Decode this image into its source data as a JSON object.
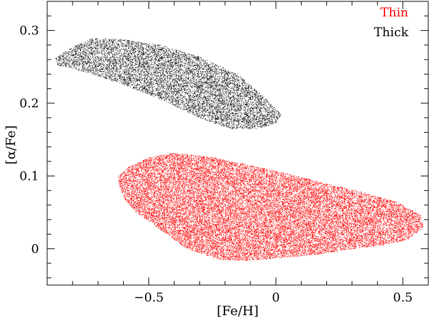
{
  "chart_data": {
    "type": "scatter",
    "title": "",
    "xlabel": "[Fe/H]",
    "ylabel": "[α/Fe]",
    "xlim": [
      -0.9,
      0.6
    ],
    "ylim": [
      -0.05,
      0.34
    ],
    "x_ticks": [
      -0.5,
      0,
      0.5
    ],
    "x_tick_labels": [
      "−0.5",
      "0",
      "0.5"
    ],
    "y_ticks": [
      0,
      0.1,
      0.2,
      0.3
    ],
    "y_tick_labels": [
      "0",
      "0.1",
      "0.2",
      "0.3"
    ],
    "grid": false,
    "legend_position": "top-right",
    "series": [
      {
        "name": "Thin",
        "color": "#ff0000",
        "marker": "dot",
        "n_points": 26000,
        "region_outline": [
          [
            -0.62,
            0.1
          ],
          [
            -0.58,
            0.113
          ],
          [
            -0.5,
            0.126
          ],
          [
            -0.4,
            0.132
          ],
          [
            -0.25,
            0.126
          ],
          [
            -0.1,
            0.115
          ],
          [
            0.05,
            0.103
          ],
          [
            0.2,
            0.09
          ],
          [
            0.35,
            0.077
          ],
          [
            0.48,
            0.064
          ],
          [
            0.57,
            0.046
          ],
          [
            0.58,
            0.03
          ],
          [
            0.52,
            0.013
          ],
          [
            0.42,
            0.005
          ],
          [
            0.3,
            0.0
          ],
          [
            0.15,
            -0.008
          ],
          [
            0.0,
            -0.013
          ],
          [
            -0.12,
            -0.016
          ],
          [
            -0.22,
            -0.015
          ],
          [
            -0.35,
            0.0
          ],
          [
            -0.45,
            0.025
          ],
          [
            -0.55,
            0.05
          ],
          [
            -0.6,
            0.07
          ],
          [
            -0.62,
            0.09
          ]
        ]
      },
      {
        "name": "Thick",
        "color": "#000000",
        "marker": "dot",
        "n_points": 9000,
        "region_outline": [
          [
            -0.87,
            0.262
          ],
          [
            -0.8,
            0.278
          ],
          [
            -0.72,
            0.29
          ],
          [
            -0.6,
            0.288
          ],
          [
            -0.45,
            0.28
          ],
          [
            -0.3,
            0.264
          ],
          [
            -0.15,
            0.24
          ],
          [
            -0.05,
            0.21
          ],
          [
            0.02,
            0.185
          ],
          [
            0.0,
            0.173
          ],
          [
            -0.08,
            0.165
          ],
          [
            -0.18,
            0.165
          ],
          [
            -0.3,
            0.18
          ],
          [
            -0.45,
            0.205
          ],
          [
            -0.6,
            0.226
          ],
          [
            -0.75,
            0.243
          ],
          [
            -0.86,
            0.253
          ]
        ]
      }
    ]
  }
}
